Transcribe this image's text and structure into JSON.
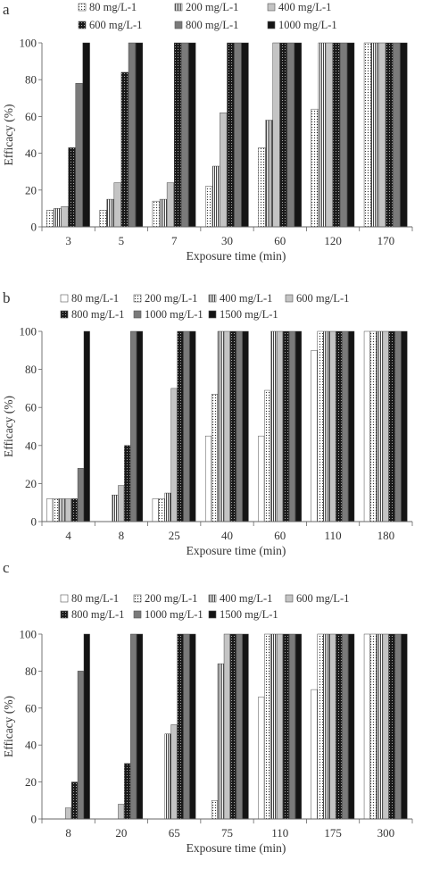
{
  "chart_data": [
    {
      "panel_label": "a",
      "type": "bar",
      "xlabel": "Exposure  time (min)",
      "ylabel": "Efficacy (%)",
      "ylim": [
        0,
        100
      ],
      "yticks": [
        0,
        20,
        40,
        60,
        80,
        100
      ],
      "grid": false,
      "legend_position": "top",
      "categories": [
        "3",
        "5",
        "7",
        "30",
        "60",
        "120",
        "170"
      ],
      "series": [
        {
          "name": "80 mg/L-1",
          "pattern": "dots-sparse",
          "values": [
            9,
            9,
            14,
            22,
            43,
            64,
            100
          ]
        },
        {
          "name": "200 mg/L-1",
          "pattern": "vlines",
          "values": [
            10,
            15,
            15,
            33,
            58,
            100,
            100
          ]
        },
        {
          "name": "400 mg/L-1",
          "pattern": "light",
          "values": [
            11,
            24,
            24,
            62,
            100,
            100,
            100
          ]
        },
        {
          "name": "600 mg/L-1",
          "pattern": "dots-dense",
          "values": [
            43,
            84,
            100,
            100,
            100,
            100,
            100
          ]
        },
        {
          "name": "800 mg/L-1",
          "pattern": "mid",
          "values": [
            78,
            100,
            100,
            100,
            100,
            100,
            100
          ]
        },
        {
          "name": "1000 mg/L-1",
          "pattern": "dark",
          "values": [
            100,
            100,
            100,
            100,
            100,
            100,
            100
          ]
        }
      ]
    },
    {
      "panel_label": "b",
      "type": "bar",
      "xlabel": "Exposure time (min)",
      "ylabel": "Efficacy (%)",
      "ylim": [
        0,
        100
      ],
      "yticks": [
        0,
        20,
        40,
        60,
        80,
        100
      ],
      "grid": false,
      "legend_position": "top",
      "categories": [
        "4",
        "8",
        "25",
        "40",
        "60",
        "110",
        "180"
      ],
      "series": [
        {
          "name": "80 mg/L-1",
          "pattern": "white",
          "values": [
            12,
            0,
            12,
            45,
            45,
            90,
            100
          ]
        },
        {
          "name": "200 mg/L-1",
          "pattern": "dots-sparse",
          "values": [
            12,
            0,
            12,
            67,
            69,
            100,
            100
          ]
        },
        {
          "name": "400 mg/L-1",
          "pattern": "vlines",
          "values": [
            12,
            14,
            15,
            100,
            100,
            100,
            100
          ]
        },
        {
          "name": "600 mg/L-1",
          "pattern": "light",
          "values": [
            12,
            19,
            70,
            100,
            100,
            100,
            100
          ]
        },
        {
          "name": "800 mg/L-1",
          "pattern": "dots-dense",
          "values": [
            12,
            40,
            100,
            100,
            100,
            100,
            100
          ]
        },
        {
          "name": "1000 mg/L-1",
          "pattern": "mid",
          "values": [
            28,
            100,
            100,
            100,
            100,
            100,
            100
          ]
        },
        {
          "name": "1500 mg/L-1",
          "pattern": "dark",
          "values": [
            100,
            100,
            100,
            100,
            100,
            100,
            100
          ]
        }
      ]
    },
    {
      "panel_label": "c",
      "type": "bar",
      "xlabel": "Exposure time (min)",
      "ylabel": "Efficacy (%)",
      "ylim": [
        0,
        100
      ],
      "yticks": [
        0,
        20,
        40,
        60,
        80,
        100
      ],
      "grid": false,
      "legend_position": "top",
      "categories": [
        "8",
        "20",
        "65",
        "75",
        "110",
        "175",
        "300"
      ],
      "series": [
        {
          "name": "80 mg/L-1",
          "pattern": "white",
          "values": [
            0,
            0,
            0,
            0,
            66,
            70,
            100
          ]
        },
        {
          "name": "200 mg/L-1",
          "pattern": "dots-sparse",
          "values": [
            0,
            0,
            0,
            10,
            100,
            100,
            100
          ]
        },
        {
          "name": "400 mg/L-1",
          "pattern": "vlines",
          "values": [
            0,
            0,
            46,
            84,
            100,
            100,
            100
          ]
        },
        {
          "name": "600 mg/L-1",
          "pattern": "light",
          "values": [
            6,
            8,
            51,
            100,
            100,
            100,
            100
          ]
        },
        {
          "name": "800 mg/L-1",
          "pattern": "dots-dense",
          "values": [
            20,
            30,
            100,
            100,
            100,
            100,
            100
          ]
        },
        {
          "name": "1000 mg/L-1",
          "pattern": "mid",
          "values": [
            80,
            100,
            100,
            100,
            100,
            100,
            100
          ]
        },
        {
          "name": "1500 mg/L-1",
          "pattern": "dark",
          "values": [
            100,
            100,
            100,
            100,
            100,
            100,
            100
          ]
        }
      ]
    }
  ]
}
